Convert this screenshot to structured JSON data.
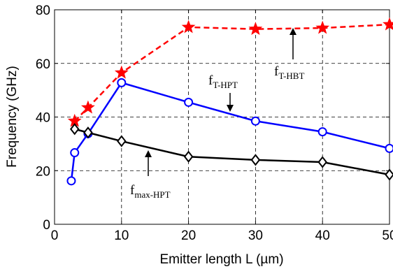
{
  "chart_data": {
    "type": "line",
    "xlabel": "Emitter length L (µm)",
    "ylabel": "Frequency (GHz)",
    "xlim": [
      0,
      50
    ],
    "ylim": [
      0,
      80
    ],
    "xticks": [
      0,
      10,
      20,
      30,
      40,
      50
    ],
    "yticks": [
      0,
      20,
      40,
      60,
      80
    ],
    "grid": true,
    "series": [
      {
        "name": "fT-HBT",
        "color": "#ff0000",
        "line": "dashed",
        "marker": "star",
        "x": [
          3,
          5,
          10,
          20,
          30,
          40,
          50
        ],
        "y": [
          38.5,
          43.5,
          56.5,
          73.5,
          72.8,
          73.2,
          74.5
        ]
      },
      {
        "name": "fT-HPT",
        "color": "#0000ff",
        "line": "solid",
        "marker": "circle",
        "x": [
          2.5,
          3,
          5,
          10,
          20,
          30,
          40,
          50
        ],
        "y": [
          16.2,
          26.7,
          33.8,
          52.8,
          45.5,
          38.5,
          34.5,
          28.3
        ]
      },
      {
        "name": "fmax-HPT",
        "color": "#000000",
        "line": "solid",
        "marker": "diamond",
        "x": [
          3,
          5,
          10,
          20,
          30,
          40,
          50
        ],
        "y": [
          35.5,
          34.2,
          31.0,
          25.2,
          24.0,
          23.2,
          18.5
        ]
      }
    ],
    "annotations": [
      {
        "series_index": 0,
        "base": "f",
        "sub": "T-HBT"
      },
      {
        "series_index": 1,
        "base": "f",
        "sub": "T-HPT"
      },
      {
        "series_index": 2,
        "base": "f",
        "sub": "max-HPT"
      }
    ]
  }
}
